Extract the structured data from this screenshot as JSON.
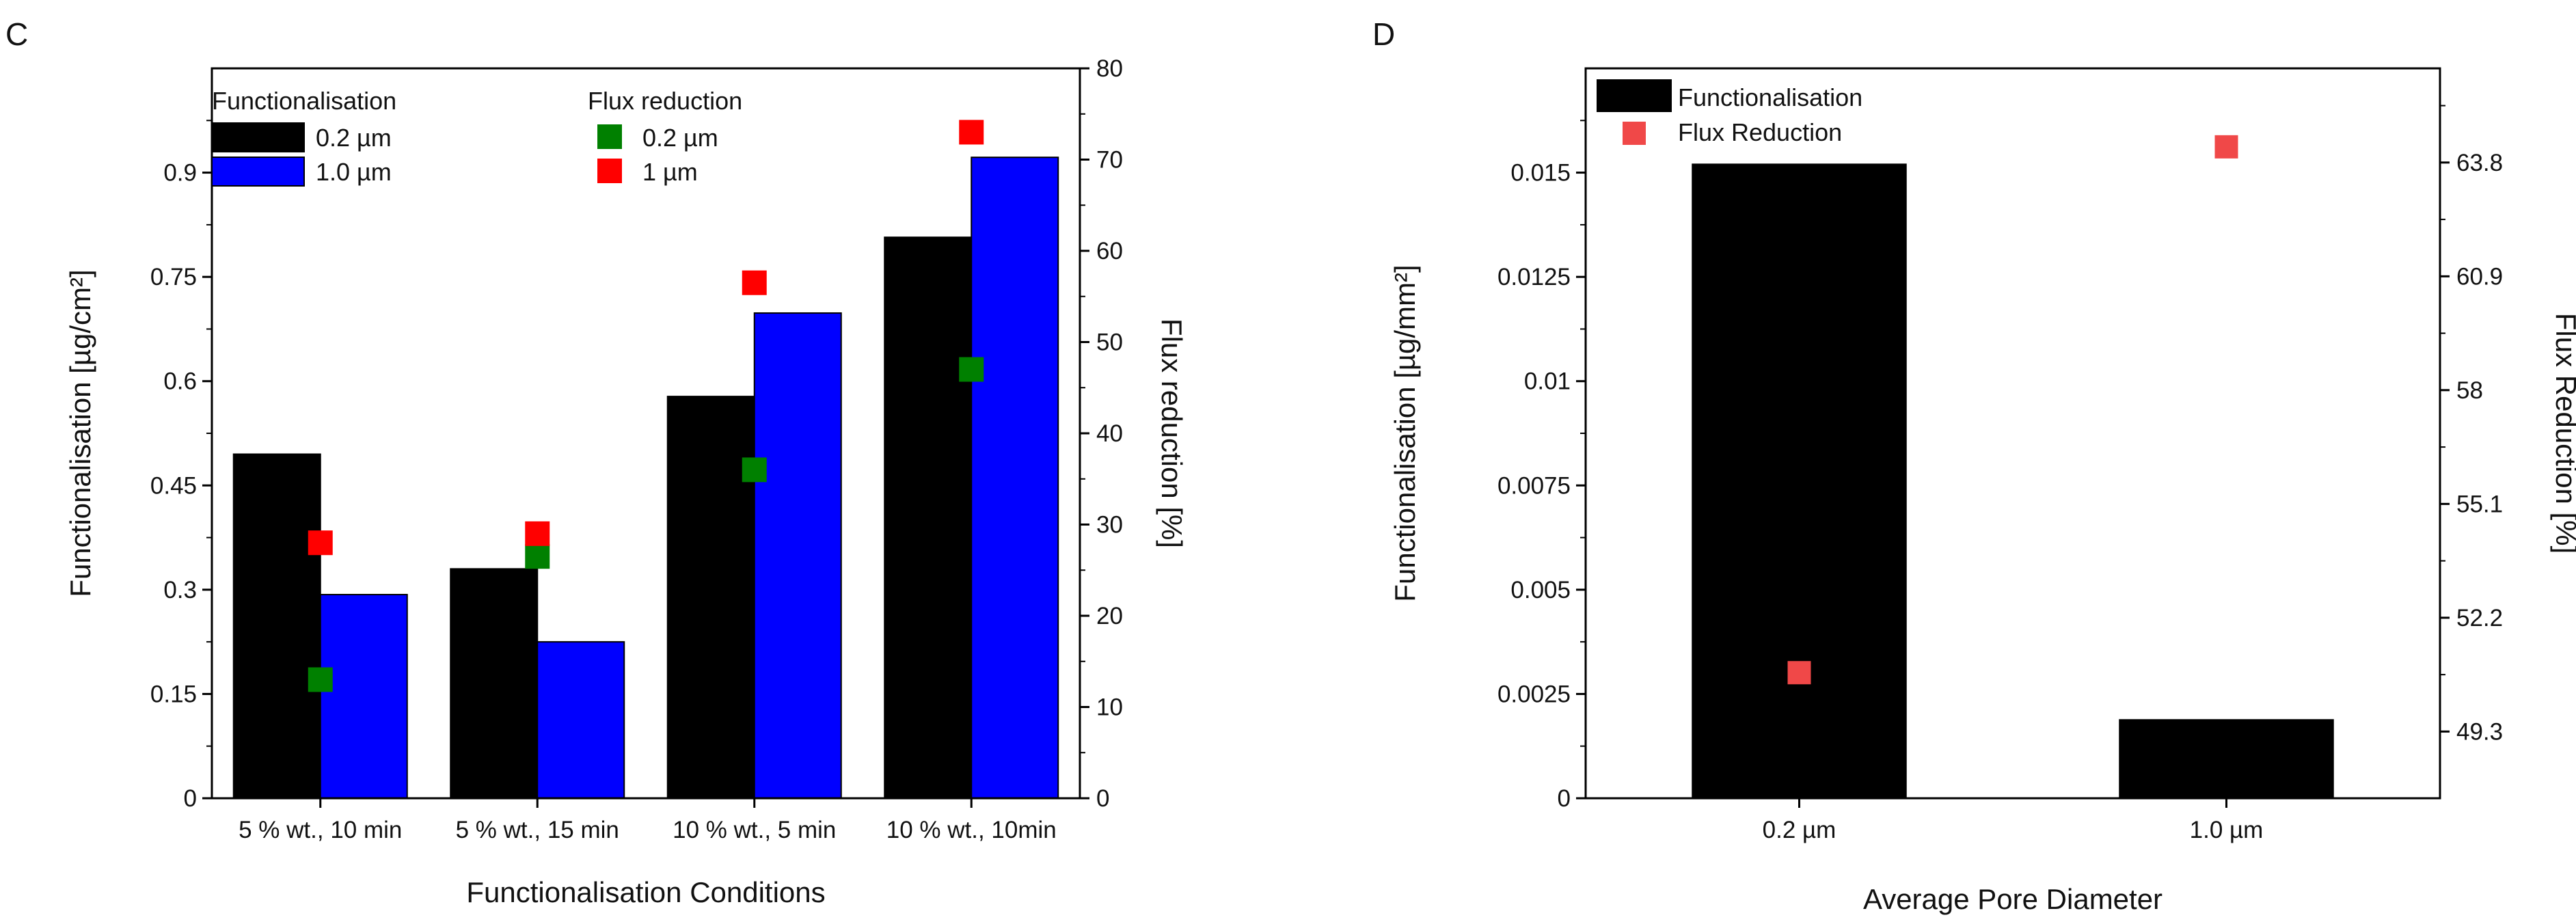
{
  "chart_data": [
    {
      "panel_label": "C",
      "type": "bar",
      "categories": [
        "5 % wt., 10 min",
        "5 % wt., 15 min",
        "10 % wt., 5 min",
        "10 % wt., 10min"
      ],
      "xlabel": "Functionalisation Conditions",
      "ylabel": "Functionalisation [µg/cm²]",
      "ylim": [
        0,
        1.05
      ],
      "yticks": [
        0,
        0.15,
        0.3,
        0.45,
        0.6,
        0.75,
        0.9
      ],
      "ytick_labels": [
        "0",
        "0.15",
        "0.3",
        "0.45",
        "0.6",
        "0.75",
        "0.9"
      ],
      "y2label": "Flux reduction [%]",
      "y2lim": [
        0,
        80
      ],
      "y2ticks": [
        0,
        10,
        20,
        30,
        40,
        50,
        60,
        70,
        80
      ],
      "y2tick_labels": [
        "0",
        "10",
        "20",
        "30",
        "40",
        "50",
        "60",
        "70",
        "80"
      ],
      "series": [
        {
          "name": "0.2 µm",
          "axis": "left",
          "kind": "bar",
          "color": "#000000",
          "values": [
            0.495,
            0.33,
            0.578,
            0.807
          ]
        },
        {
          "name": "1.0 µm",
          "axis": "left",
          "kind": "bar",
          "color": "#0000ff",
          "values": [
            0.293,
            0.225,
            0.698,
            0.922
          ]
        },
        {
          "name": "0.2 µm",
          "axis": "right",
          "kind": "scatter",
          "color": "#008000",
          "values": [
            13,
            26.5,
            36,
            47
          ]
        },
        {
          "name": "1 µm",
          "axis": "right",
          "kind": "scatter",
          "color": "#ff0000",
          "values": [
            28,
            29,
            56.5,
            73
          ]
        }
      ],
      "legend": {
        "placement": "top-left",
        "groups": [
          {
            "title": "Functionalisation",
            "entries": [
              0,
              1
            ]
          },
          {
            "title": "Flux reduction",
            "entries": [
              2,
              3
            ]
          }
        ]
      },
      "grid": false
    },
    {
      "panel_label": "D",
      "type": "bar",
      "categories": [
        "0.2 µm",
        "1.0 µm"
      ],
      "xlabel": "Average Pore Diameter",
      "ylabel": "Functionalisation [µg/mm²]",
      "ylim": [
        0,
        0.0175
      ],
      "yticks": [
        0,
        0.0025,
        0.005,
        0.0075,
        0.01,
        0.0125,
        0.015
      ],
      "ytick_labels": [
        "0",
        "0.0025",
        "0.005",
        "0.0075",
        "0.01",
        "0.0125",
        "0.015"
      ],
      "y2label": "Flux Reduction [%]",
      "y2lim": [
        47.6,
        66.2
      ],
      "y2ticks": [
        49.3,
        52.2,
        55.1,
        58,
        60.9,
        63.8
      ],
      "y2tick_labels": [
        "49.3",
        "52.2",
        "55.1",
        "58",
        "60.9",
        "63.8"
      ],
      "series": [
        {
          "name": "Functionalisation",
          "axis": "left",
          "kind": "bar",
          "color": "#000000",
          "values": [
            0.0152,
            0.00188
          ]
        },
        {
          "name": "Flux Reduction",
          "axis": "right",
          "kind": "scatter",
          "color": "#f04848",
          "values": [
            50.8,
            64.2
          ]
        }
      ],
      "legend": {
        "placement": "top-left",
        "groups": [
          {
            "title": "",
            "entries": [
              0,
              1
            ]
          }
        ]
      },
      "grid": false
    }
  ]
}
